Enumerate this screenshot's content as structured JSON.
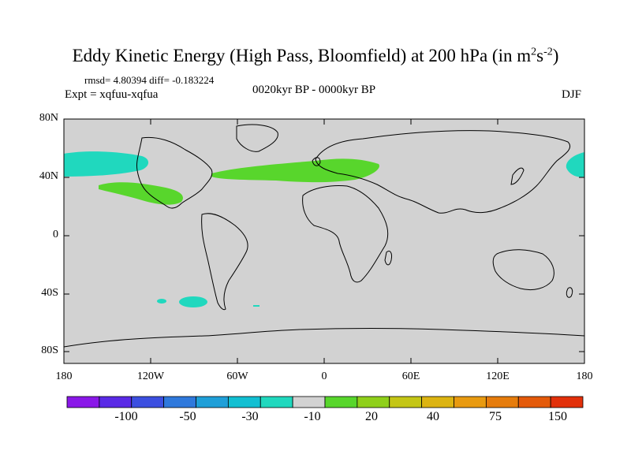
{
  "title": {
    "main": "Eddy Kinetic Energy (High Pass, Bloomfield) at 200 hPa (in m",
    "sup1": "2",
    "mid": "s",
    "sup2": "-2",
    "end": ")"
  },
  "rmsd_line": "rmsd= 4.80394 diff= -0.183224",
  "expt_line": "Expt = xqfuu-xqfua",
  "period": "0020kyr BP - 0000kyr BP",
  "season": "DJF",
  "lat_labels": [
    "80N",
    "40N",
    "0",
    "40S",
    "80S"
  ],
  "lon_labels": [
    "180",
    "120W",
    "60W",
    "0",
    "60E",
    "120E",
    "180"
  ],
  "colorbar": {
    "labels": [
      "-100",
      "-50",
      "-30",
      "-10",
      "20",
      "40",
      "75",
      "150"
    ],
    "colors": [
      "#8a18e8",
      "#5a2ae6",
      "#3c4fe0",
      "#2f79dc",
      "#1f9fd8",
      "#12bfd2",
      "#20d8be",
      "#d2d2d2",
      "#58d62c",
      "#8fd01a",
      "#c4c616",
      "#dcb412",
      "#e89a10",
      "#e67c0c",
      "#e45a0a",
      "#e2300a"
    ]
  },
  "colors": {
    "ocean_land": "#d2d2d2",
    "positive_anomaly": "#58d62c",
    "negative_anomaly": "#20d8be",
    "coastline": "#000000"
  }
}
